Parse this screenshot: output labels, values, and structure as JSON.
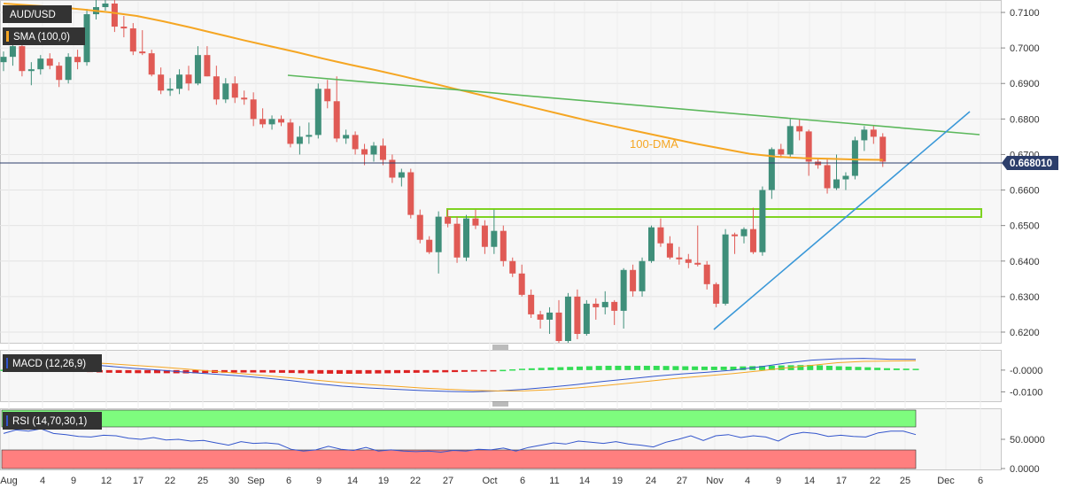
{
  "instrument": {
    "label": "AUD/USD"
  },
  "overlay": {
    "label": "SMA (100,0)",
    "annotation": "100-DMA"
  },
  "price_axis": {
    "ticks": [
      "0.7100",
      "0.7000",
      "0.6900",
      "0.6800",
      "0.6700",
      "0.6600",
      "0.6500",
      "0.6400",
      "0.6300",
      "0.6200"
    ]
  },
  "current_price": {
    "label": "0.668010",
    "value": 0.66801
  },
  "macd": {
    "label": "MACD (12,26,9)",
    "ticks": [
      "-0.0000",
      "-0.0100"
    ]
  },
  "rsi": {
    "label": "RSI (14,70,30,1)",
    "ticks": [
      "50.0000",
      "0.0000"
    ]
  },
  "time_axis": {
    "labels": [
      "Aug",
      "4",
      "9",
      "12",
      "17",
      "22",
      "25",
      "30",
      "Sep",
      "6",
      "9",
      "14",
      "19",
      "22",
      "27",
      "Oct",
      "6",
      "11",
      "14",
      "19",
      "24",
      "27",
      "Nov",
      "4",
      "9",
      "14",
      "17",
      "22",
      "25",
      "Dec",
      "6"
    ]
  },
  "colors": {
    "bull": "#3f8f7a",
    "bear": "#e05a55",
    "sma": "#f5a623",
    "resistance": "#5cb85c",
    "support": "#3a98d8",
    "zone": "#7ed321",
    "macd_line": "#3355cc",
    "signal_line": "#f5a623",
    "hist_pos": "#33dd55",
    "hist_neg": "#dd2222",
    "rsi_ob": "#7efc7e",
    "rsi_os": "#ff7f7f"
  },
  "chart_data": [
    {
      "type": "candlestick",
      "title": "AUD/USD",
      "ylim": [
        0.617,
        0.713
      ],
      "ohlc": [
        [
          0.696,
          0.699,
          0.6935,
          0.6975
        ],
        [
          0.6975,
          0.702,
          0.695,
          0.7005
        ],
        [
          0.7005,
          0.703,
          0.692,
          0.6935
        ],
        [
          0.6935,
          0.696,
          0.6895,
          0.694
        ],
        [
          0.694,
          0.698,
          0.6925,
          0.697
        ],
        [
          0.697,
          0.6985,
          0.694,
          0.695
        ],
        [
          0.695,
          0.696,
          0.689,
          0.691
        ],
        [
          0.691,
          0.6985,
          0.69,
          0.6975
        ],
        [
          0.6975,
          0.6995,
          0.694,
          0.696
        ],
        [
          0.696,
          0.711,
          0.695,
          0.7095
        ],
        [
          0.7095,
          0.714,
          0.708,
          0.7115
        ],
        [
          0.7115,
          0.7135,
          0.7105,
          0.7125
        ],
        [
          0.7125,
          0.7135,
          0.7045,
          0.706
        ],
        [
          0.706,
          0.709,
          0.703,
          0.7055
        ],
        [
          0.7055,
          0.707,
          0.698,
          0.699
        ],
        [
          0.699,
          0.705,
          0.698,
          0.6985
        ],
        [
          0.6985,
          0.6995,
          0.692,
          0.6925
        ],
        [
          0.6925,
          0.6945,
          0.687,
          0.688
        ],
        [
          0.688,
          0.6915,
          0.6865,
          0.6885
        ],
        [
          0.6885,
          0.694,
          0.687,
          0.6925
        ],
        [
          0.6925,
          0.695,
          0.688,
          0.69
        ],
        [
          0.69,
          0.7005,
          0.6895,
          0.698
        ],
        [
          0.698,
          0.7005,
          0.692,
          0.692
        ],
        [
          0.692,
          0.695,
          0.684,
          0.6855
        ],
        [
          0.6855,
          0.6915,
          0.6845,
          0.69
        ],
        [
          0.69,
          0.692,
          0.6845,
          0.686
        ],
        [
          0.686,
          0.688,
          0.684,
          0.6855
        ],
        [
          0.6855,
          0.6875,
          0.678,
          0.68
        ],
        [
          0.68,
          0.683,
          0.6775,
          0.6785
        ],
        [
          0.6785,
          0.681,
          0.677,
          0.68
        ],
        [
          0.68,
          0.681,
          0.678,
          0.679
        ],
        [
          0.679,
          0.68,
          0.672,
          0.673
        ],
        [
          0.673,
          0.678,
          0.67,
          0.675
        ],
        [
          0.675,
          0.679,
          0.673,
          0.6755
        ],
        [
          0.6755,
          0.69,
          0.6745,
          0.6885
        ],
        [
          0.6885,
          0.691,
          0.683,
          0.685
        ],
        [
          0.685,
          0.692,
          0.6735,
          0.6745
        ],
        [
          0.6745,
          0.677,
          0.673,
          0.6755
        ],
        [
          0.6755,
          0.6765,
          0.67,
          0.6715
        ],
        [
          0.6715,
          0.673,
          0.667,
          0.67
        ],
        [
          0.67,
          0.6735,
          0.668,
          0.6725
        ],
        [
          0.6725,
          0.6745,
          0.667,
          0.6685
        ],
        [
          0.6685,
          0.67,
          0.662,
          0.6635
        ],
        [
          0.6635,
          0.666,
          0.661,
          0.665
        ],
        [
          0.665,
          0.666,
          0.652,
          0.653
        ],
        [
          0.653,
          0.6545,
          0.645,
          0.646
        ],
        [
          0.646,
          0.647,
          0.642,
          0.6425
        ],
        [
          0.6425,
          0.654,
          0.6365,
          0.6525
        ],
        [
          0.6525,
          0.6545,
          0.6495,
          0.6505
        ],
        [
          0.6505,
          0.6525,
          0.6395,
          0.641
        ],
        [
          0.641,
          0.653,
          0.64,
          0.652
        ],
        [
          0.652,
          0.6545,
          0.649,
          0.65
        ],
        [
          0.65,
          0.6515,
          0.642,
          0.644
        ],
        [
          0.644,
          0.6545,
          0.642,
          0.6485
        ],
        [
          0.6485,
          0.65,
          0.6385,
          0.64
        ],
        [
          0.64,
          0.641,
          0.6355,
          0.6365
        ],
        [
          0.6365,
          0.639,
          0.63,
          0.6305
        ],
        [
          0.6305,
          0.632,
          0.624,
          0.625
        ],
        [
          0.625,
          0.626,
          0.621,
          0.6235
        ],
        [
          0.6235,
          0.627,
          0.6195,
          0.6255
        ],
        [
          0.6255,
          0.629,
          0.617,
          0.6175
        ],
        [
          0.6175,
          0.631,
          0.617,
          0.63
        ],
        [
          0.63,
          0.632,
          0.618,
          0.6195
        ],
        [
          0.6195,
          0.629,
          0.619,
          0.628
        ],
        [
          0.628,
          0.6295,
          0.6235,
          0.627
        ],
        [
          0.627,
          0.6315,
          0.625,
          0.6285
        ],
        [
          0.6285,
          0.629,
          0.622,
          0.626
        ],
        [
          0.626,
          0.638,
          0.621,
          0.6375
        ],
        [
          0.6375,
          0.639,
          0.63,
          0.6315
        ],
        [
          0.6315,
          0.641,
          0.63,
          0.64
        ],
        [
          0.64,
          0.65,
          0.6395,
          0.6495
        ],
        [
          0.6495,
          0.652,
          0.644,
          0.645
        ],
        [
          0.645,
          0.647,
          0.6405,
          0.641
        ],
        [
          0.641,
          0.644,
          0.639,
          0.6405
        ],
        [
          0.6405,
          0.642,
          0.638,
          0.6395
        ],
        [
          0.6395,
          0.65,
          0.6385,
          0.639
        ],
        [
          0.639,
          0.64,
          0.632,
          0.6335
        ],
        [
          0.6335,
          0.634,
          0.627,
          0.628
        ],
        [
          0.628,
          0.649,
          0.6275,
          0.6475
        ],
        [
          0.6475,
          0.648,
          0.642,
          0.647
        ],
        [
          0.647,
          0.6495,
          0.645,
          0.649
        ],
        [
          0.649,
          0.655,
          0.642,
          0.6425
        ],
        [
          0.6425,
          0.661,
          0.6415,
          0.66
        ],
        [
          0.66,
          0.672,
          0.6575,
          0.6715
        ],
        [
          0.6715,
          0.673,
          0.669,
          0.67
        ],
        [
          0.67,
          0.68,
          0.669,
          0.678
        ],
        [
          0.678,
          0.68,
          0.674,
          0.6765
        ],
        [
          0.6765,
          0.677,
          0.664,
          0.668
        ],
        [
          0.668,
          0.669,
          0.666,
          0.667
        ],
        [
          0.667,
          0.669,
          0.659,
          0.6605
        ],
        [
          0.6605,
          0.67,
          0.66,
          0.663
        ],
        [
          0.663,
          0.665,
          0.66,
          0.664
        ],
        [
          0.664,
          0.675,
          0.663,
          0.674
        ],
        [
          0.674,
          0.678,
          0.671,
          0.677
        ],
        [
          0.677,
          0.678,
          0.673,
          0.675
        ],
        [
          0.675,
          0.676,
          0.6665,
          0.668
        ]
      ],
      "sma_100": [
        0.7125,
        0.712,
        0.7115,
        0.7108,
        0.71,
        0.709,
        0.7075,
        0.7058,
        0.704,
        0.7022,
        0.7005,
        0.6988,
        0.697,
        0.6953,
        0.6937,
        0.692,
        0.6902,
        0.6884,
        0.6866,
        0.6848,
        0.683,
        0.6812,
        0.6794,
        0.6778,
        0.6762,
        0.6746,
        0.673,
        0.6716,
        0.6702,
        0.6694,
        0.669,
        0.6688,
        0.6686,
        0.6685
      ],
      "series": [
        {
          "name": "100-DMA",
          "kind": "line"
        }
      ]
    },
    {
      "type": "line",
      "title": "MACD (12,26,9)",
      "ylim": [
        -0.0135,
        0.0085
      ],
      "macd": [
        0.0045,
        0.0042,
        0.0036,
        0.0028,
        0.0018,
        0.0008,
        0.0,
        -0.001,
        -0.0018,
        -0.0026,
        -0.0036,
        -0.0048,
        -0.0062,
        -0.0074,
        -0.0082,
        -0.0088,
        -0.0094,
        -0.0098,
        -0.01,
        -0.0096,
        -0.0088,
        -0.0078,
        -0.0066,
        -0.0052,
        -0.004,
        -0.0028,
        -0.0018,
        -0.001,
        0.0,
        0.0015,
        0.0032,
        0.0046,
        0.0052,
        0.0054,
        0.005,
        0.0049
      ],
      "signal": [
        0.0043,
        0.0042,
        0.004,
        0.0036,
        0.003,
        0.0022,
        0.0014,
        0.0005,
        -0.0005,
        -0.0015,
        -0.0025,
        -0.0035,
        -0.0046,
        -0.0057,
        -0.0066,
        -0.0074,
        -0.0082,
        -0.0088,
        -0.0093,
        -0.0096,
        -0.0095,
        -0.009,
        -0.0082,
        -0.0072,
        -0.006,
        -0.0048,
        -0.0036,
        -0.0026,
        -0.0016,
        -0.0004,
        0.001,
        0.0022,
        0.0034,
        0.004,
        0.0042,
        0.0043
      ]
    },
    {
      "type": "line",
      "title": "RSI (14,70,30,1)",
      "ylim": [
        0,
        100
      ],
      "overbought": 70,
      "oversold": 30,
      "values": [
        60,
        66,
        64,
        68,
        60,
        58,
        55,
        54,
        57,
        56,
        52,
        50,
        53,
        49,
        50,
        47,
        48,
        44,
        40,
        46,
        43,
        44,
        42,
        33,
        30,
        32,
        38,
        33,
        31,
        36,
        30,
        32,
        30,
        29,
        30,
        28,
        31,
        30,
        33,
        32,
        35,
        30,
        36,
        40,
        44,
        42,
        47,
        45,
        43,
        46,
        42,
        40,
        37,
        45,
        50,
        56,
        48,
        56,
        58,
        53,
        56,
        54,
        47,
        58,
        62,
        60,
        55,
        57,
        55,
        54,
        61,
        64,
        64,
        58
      ]
    }
  ]
}
